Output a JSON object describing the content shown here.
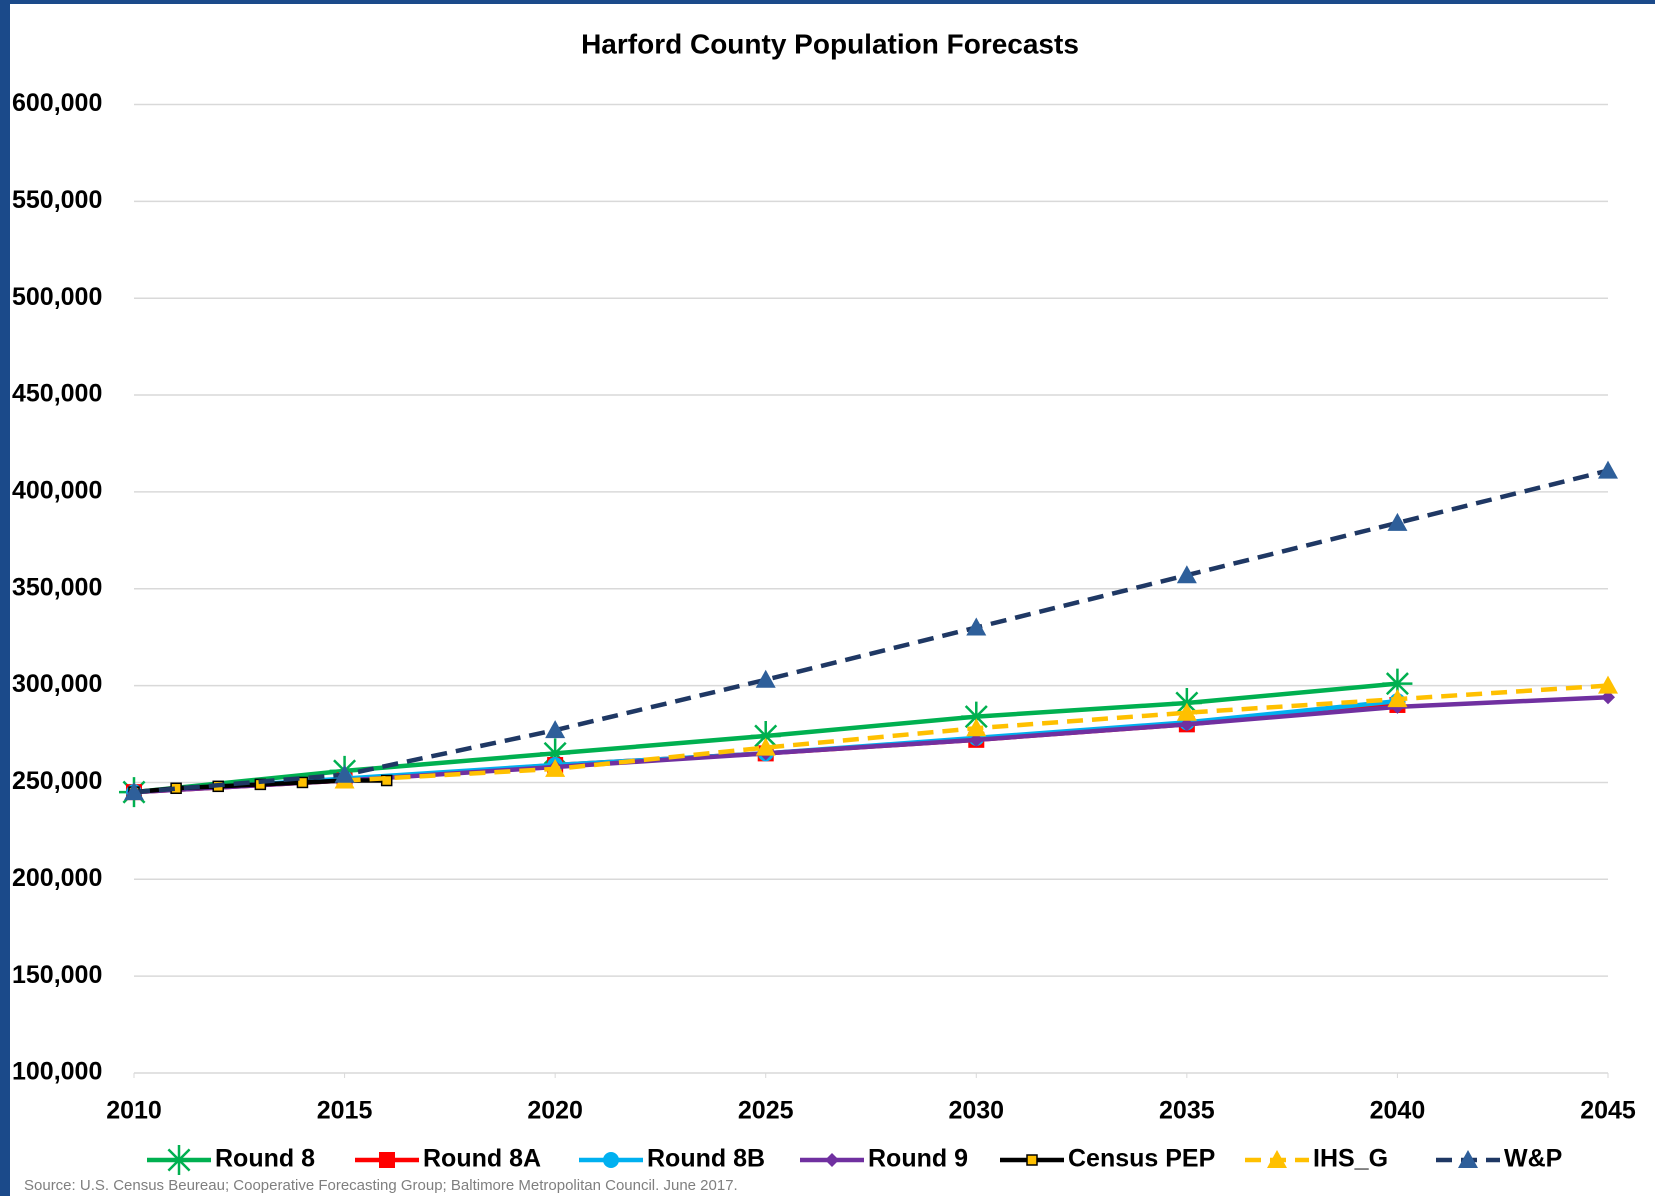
{
  "chart_data": {
    "type": "line",
    "title": "Harford County Population Forecasts",
    "source": "Source: U.S. Census Beureau; Cooperative Forecasting Group; Baltimore Metropolitan Council. June 2017.",
    "xlim": [
      2010,
      2045
    ],
    "xticks": [
      2010,
      2015,
      2020,
      2025,
      2030,
      2035,
      2040,
      2045
    ],
    "ylim": [
      100000,
      600000
    ],
    "yticks": [
      {
        "value": 100000,
        "label": "100,000"
      },
      {
        "value": 150000,
        "label": "150,000"
      },
      {
        "value": 200000,
        "label": "200,000"
      },
      {
        "value": 250000,
        "label": "250,000"
      },
      {
        "value": 300000,
        "label": "300,000"
      },
      {
        "value": 350000,
        "label": "350,000"
      },
      {
        "value": 400000,
        "label": "400,000"
      },
      {
        "value": 450000,
        "label": "450,000"
      },
      {
        "value": 500000,
        "label": "500,000"
      },
      {
        "value": 550000,
        "label": "550,000"
      },
      {
        "value": 600000,
        "label": "600,000"
      }
    ],
    "grid": true,
    "legend": "bottom",
    "series": [
      {
        "name": "Round 8",
        "color": "#00b050",
        "marker": "star",
        "marker_color": "#00b050",
        "dashed": false,
        "x": [
          2010,
          2015,
          2020,
          2025,
          2030,
          2035,
          2040
        ],
        "values": [
          245000,
          256000,
          265000,
          274000,
          284000,
          291000,
          301000
        ]
      },
      {
        "name": "Round 8A",
        "color": "#ff0000",
        "marker": "square",
        "marker_color": "#ff0000",
        "dashed": false,
        "x": [
          2010,
          2015,
          2020,
          2025,
          2030,
          2035,
          2040
        ],
        "values": [
          245000,
          251000,
          259000,
          265000,
          272000,
          280000,
          290000
        ]
      },
      {
        "name": "Round 8B",
        "color": "#00b0f0",
        "marker": "circle",
        "marker_color": "#00b0f0",
        "dashed": false,
        "x": [
          2010,
          2015,
          2020,
          2025,
          2030,
          2035,
          2040
        ],
        "values": [
          245000,
          252000,
          259000,
          265000,
          273000,
          281000,
          292000
        ]
      },
      {
        "name": "Round 9",
        "color": "#7030a0",
        "marker": "diamond",
        "marker_color": "#7030a0",
        "dashed": false,
        "x": [
          2010,
          2015,
          2020,
          2025,
          2030,
          2035,
          2040,
          2045
        ],
        "values": [
          245000,
          251000,
          258000,
          265000,
          272000,
          280000,
          289000,
          294000
        ]
      },
      {
        "name": "Census PEP",
        "color": "#000000",
        "marker": "square-small",
        "marker_color": "#ffc000",
        "dashed": false,
        "x": [
          2010,
          2011,
          2012,
          2013,
          2014,
          2015,
          2016
        ],
        "values": [
          245000,
          247000,
          248000,
          249000,
          250000,
          251000,
          251000
        ]
      },
      {
        "name": "IHS_G",
        "color": "#ffc000",
        "marker": "triangle",
        "marker_color": "#ffc000",
        "dashed": true,
        "x": [
          2015,
          2020,
          2025,
          2030,
          2035,
          2040,
          2045
        ],
        "values": [
          251000,
          257000,
          268000,
          278000,
          286000,
          293000,
          300000
        ]
      },
      {
        "name": "W&P",
        "color": "#1f3864",
        "marker": "triangle",
        "marker_color": "#2e5f9a",
        "dashed": true,
        "x": [
          2010,
          2015,
          2020,
          2025,
          2030,
          2035,
          2040,
          2045
        ],
        "values": [
          245000,
          254000,
          277000,
          303000,
          330000,
          357000,
          384000,
          411000
        ]
      }
    ]
  }
}
